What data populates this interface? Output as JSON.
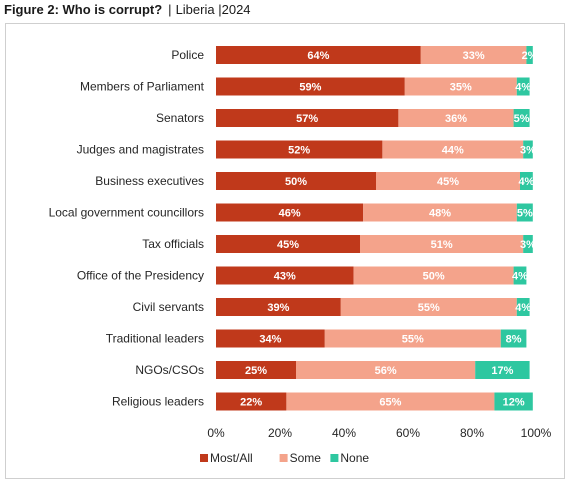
{
  "figure": {
    "title": "Figure 2: Who is corrupt?",
    "separator": "|",
    "country": "Liberia",
    "year_separator": "|",
    "year": "2024"
  },
  "chart_data": {
    "type": "bar",
    "orientation": "horizontal",
    "stacked": true,
    "categories": [
      "Police",
      "Members of Parliament",
      "Senators",
      "Judges and magistrates",
      "Business executives",
      "Local government councillors",
      "Tax officials",
      "Office of the Presidency",
      "Civil servants",
      "Traditional leaders",
      "NGOs/CSOs",
      "Religious leaders"
    ],
    "series": [
      {
        "name": "Most/All",
        "color": "#C0391B",
        "values": [
          64,
          59,
          57,
          52,
          50,
          46,
          45,
          43,
          39,
          34,
          25,
          22
        ]
      },
      {
        "name": "Some",
        "color": "#F4A38B",
        "values": [
          33,
          35,
          36,
          44,
          45,
          48,
          51,
          50,
          55,
          55,
          56,
          65
        ]
      },
      {
        "name": "None",
        "color": "#2EC7A0",
        "values": [
          2,
          4,
          5,
          3,
          4,
          5,
          3,
          4,
          4,
          8,
          17,
          12
        ]
      }
    ],
    "xlim": [
      0,
      100
    ],
    "xticks": [
      "0%",
      "20%",
      "40%",
      "60%",
      "80%",
      "100%"
    ],
    "value_suffix": "%",
    "legend_position": "bottom",
    "grid": false
  }
}
